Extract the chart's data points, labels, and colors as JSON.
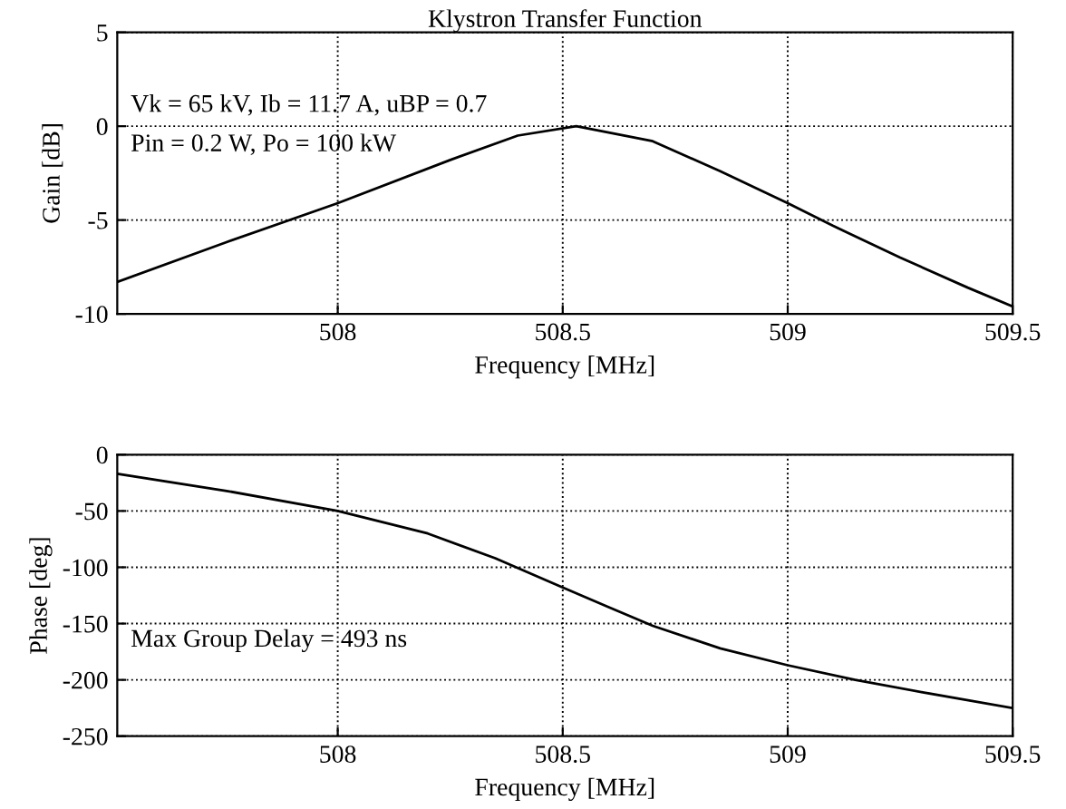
{
  "chart_data": [
    {
      "type": "line",
      "title": "Klystron Transfer Function",
      "xlabel": "Frequency [MHz]",
      "ylabel": "Gain [dB]",
      "annotations": [
        "Vk = 65 kV, Ib = 11.7 A, uBP = 0.7",
        "Pin = 0.2 W, Po = 100 kW"
      ],
      "series": [
        {
          "color": "#000000",
          "x": [
            507.51,
            507.75,
            508,
            508.25,
            508.4,
            508.53,
            508.7,
            508.85,
            509,
            509.1,
            509.25,
            509.4,
            509.5
          ],
          "values": [
            -8.3,
            -6.2,
            -4.1,
            -1.8,
            -0.5,
            0,
            -0.8,
            -2.4,
            -4.1,
            -5.3,
            -7.0,
            -8.6,
            -9.6
          ]
        }
      ],
      "xlim": [
        507.51,
        509.5
      ],
      "xticks": [
        508,
        508.5,
        509,
        509.5
      ],
      "ylim": [
        -10,
        5
      ],
      "yticks": [
        -10,
        -5,
        0,
        5
      ],
      "grid": true,
      "line_style": "solid"
    },
    {
      "type": "line",
      "xlabel": "Frequency [MHz]",
      "ylabel": "Phase [deg]",
      "annotations": [
        "Max Group Delay = 493 ns"
      ],
      "series": [
        {
          "color": "#000000",
          "x": [
            507.51,
            507.75,
            508,
            508.2,
            508.35,
            508.5,
            508.6,
            508.7,
            508.85,
            509,
            509.15,
            509.3,
            509.5
          ],
          "values": [
            -17,
            -32,
            -50,
            -70,
            -92,
            -118,
            -135,
            -152,
            -172,
            -187,
            -200,
            -211,
            -225
          ]
        }
      ],
      "xlim": [
        507.51,
        509.5
      ],
      "xticks": [
        508,
        508.5,
        509,
        509.5
      ],
      "ylim": [
        -250,
        0
      ],
      "yticks": [
        -250,
        -200,
        -150,
        -100,
        -50,
        0
      ],
      "grid": true,
      "line_style": "solid"
    }
  ]
}
